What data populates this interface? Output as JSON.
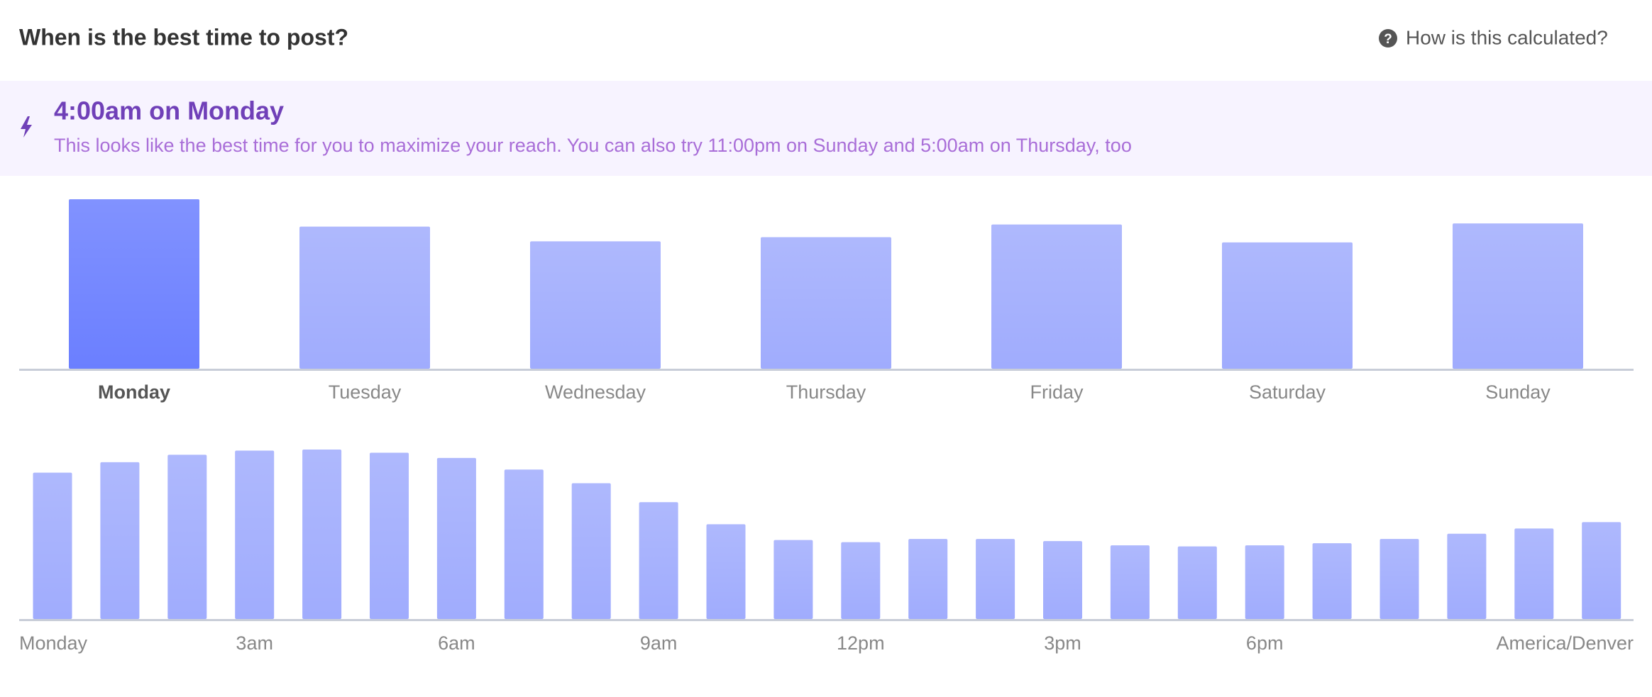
{
  "header": {
    "title": "When is the best time to post?",
    "help": "How is this calculated?"
  },
  "highlight": {
    "title": "4:00am on Monday",
    "description": "This looks like the best time for you to maximize your reach. You can also try 11:00pm on Sunday and 5:00am on Thursday, too"
  },
  "chart_data": [
    {
      "type": "bar",
      "categories": [
        "Monday",
        "Tuesday",
        "Wednesday",
        "Thursday",
        "Friday",
        "Saturday",
        "Sunday"
      ],
      "values": [
        161,
        135,
        121,
        125,
        137,
        120,
        138
      ],
      "colors": [
        "#6b7fff",
        "#a0acfd",
        "#a0acfd",
        "#a0acfd",
        "#a0acfd",
        "#a0acfd",
        "#a0acfd"
      ],
      "highlight_index": 0
    },
    {
      "type": "bar",
      "categories": [
        "Monday",
        null,
        null,
        "3am",
        null,
        null,
        "6am",
        null,
        null,
        "9am",
        null,
        null,
        "12pm",
        null,
        null,
        "3pm",
        null,
        null,
        "6pm",
        null,
        null,
        null,
        null,
        null
      ],
      "values": [
        139,
        149,
        156,
        160,
        161,
        158,
        153,
        142,
        129,
        111,
        90,
        75,
        73,
        76,
        76,
        74,
        70,
        69,
        70,
        72,
        76,
        81,
        86,
        92
      ],
      "color": "#a0acfd",
      "timezone": "America/Denver"
    }
  ]
}
